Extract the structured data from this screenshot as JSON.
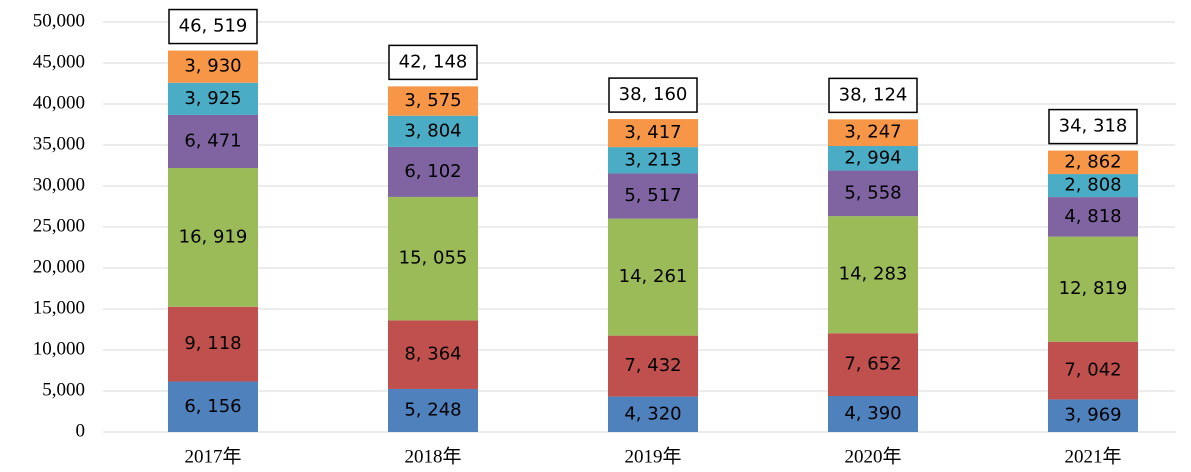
{
  "chart_data": {
    "type": "stacked-bar",
    "categories": [
      "2017年",
      "2018年",
      "2019年",
      "2020年",
      "2021年"
    ],
    "series": [
      {
        "color": "#4f81bd",
        "values": [
          6156,
          5248,
          4320,
          4390,
          3969
        ],
        "value_labels": [
          "6, 156",
          "5, 248",
          "4, 320",
          "4, 390",
          "3, 969"
        ]
      },
      {
        "color": "#c0504d",
        "values": [
          9118,
          8364,
          7432,
          7652,
          7042
        ],
        "value_labels": [
          "9, 118",
          "8, 364",
          "7, 432",
          "7, 652",
          "7, 042"
        ]
      },
      {
        "color": "#9bbb59",
        "values": [
          16919,
          15055,
          14261,
          14283,
          12819
        ],
        "value_labels": [
          "16, 919",
          "15, 055",
          "14, 261",
          "14, 283",
          "12, 819"
        ]
      },
      {
        "color": "#8064a2",
        "values": [
          6471,
          6102,
          5517,
          5558,
          4818
        ],
        "value_labels": [
          "6, 471",
          "6, 102",
          "5, 517",
          "5, 558",
          "4, 818"
        ]
      },
      {
        "color": "#4bacc6",
        "values": [
          3925,
          3804,
          3213,
          2994,
          2808
        ],
        "value_labels": [
          "3, 925",
          "3, 804",
          "3, 213",
          "2, 994",
          "2, 808"
        ]
      },
      {
        "color": "#f79646",
        "values": [
          3930,
          3575,
          3417,
          3247,
          2862
        ],
        "value_labels": [
          "3, 930",
          "3, 575",
          "3, 417",
          "3, 247",
          "2, 862"
        ]
      }
    ],
    "totals": {
      "values": [
        46519,
        42148,
        38160,
        38124,
        34318
      ],
      "value_labels": [
        "46, 519",
        "42, 148",
        "38, 160",
        "38, 124",
        "34, 318"
      ]
    },
    "ylim": [
      0,
      50000
    ],
    "yticks": [
      0,
      {
        "value": 5000,
        "label": "5,000"
      },
      {
        "value": 10000,
        "label": "10,000"
      },
      {
        "value": 15000,
        "label": "15,000"
      },
      {
        "value": 20000,
        "label": "20,000"
      },
      {
        "value": 25000,
        "label": "25,000"
      },
      {
        "value": 30000,
        "label": "30,000"
      },
      {
        "value": 35000,
        "label": "35,000"
      },
      {
        "value": 40000,
        "label": "40,000"
      },
      {
        "value": 45000,
        "label": "45,000"
      },
      {
        "value": 50000,
        "label": "50,000"
      }
    ],
    "grid": true
  }
}
